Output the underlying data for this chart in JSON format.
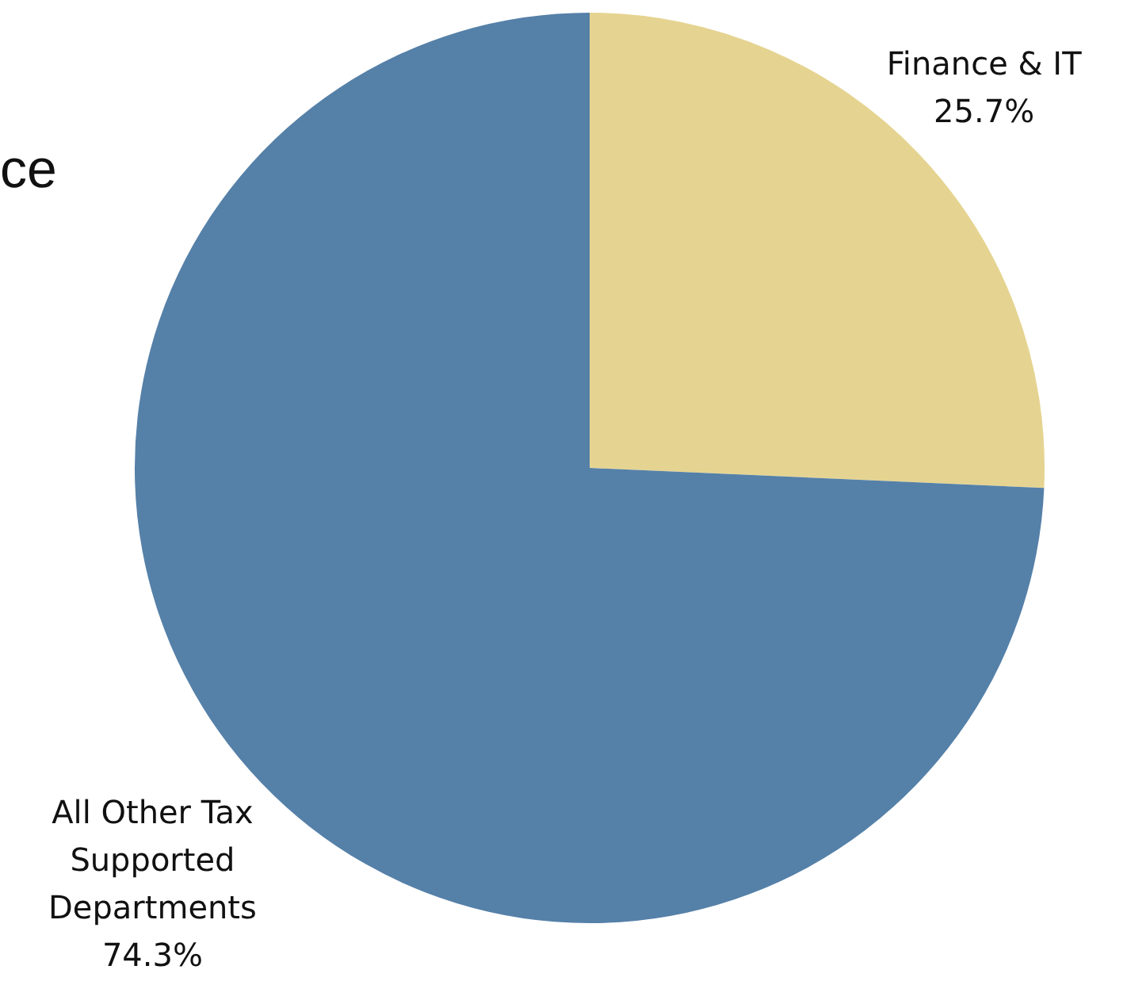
{
  "chart_data": {
    "type": "pie",
    "categories": [
      "Finance & IT",
      "All Other Tax Supported Departments"
    ],
    "values": [
      25.7,
      74.3
    ],
    "colors": [
      "#e5d491",
      "#5580a8"
    ],
    "value_labels": [
      "25.7%",
      "74.3%"
    ],
    "annotations": [
      "ce"
    ],
    "legend": false
  }
}
